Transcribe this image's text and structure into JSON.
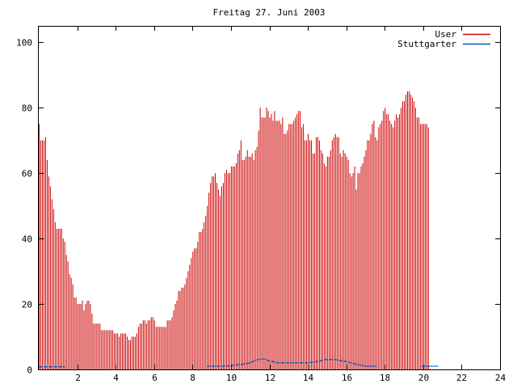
{
  "chart_data": {
    "type": "bar",
    "title": "Freitag 27. Juni 2003",
    "xlabel": "",
    "ylabel": "",
    "xlim": [
      0,
      24
    ],
    "ylim": [
      0,
      105
    ],
    "x_ticks": [
      2,
      4,
      6,
      8,
      10,
      12,
      14,
      16,
      18,
      20,
      22,
      24
    ],
    "y_ticks": [
      0,
      20,
      40,
      60,
      80,
      100
    ],
    "grid": false,
    "legend_position": "top-right",
    "step_minutes": 5,
    "series": [
      {
        "name": "User",
        "color": "#cc0000",
        "style": "impulses",
        "x_start": 0,
        "values": [
          75,
          70,
          70,
          70,
          71,
          64,
          59,
          56,
          52,
          49,
          45,
          43,
          43,
          43,
          43,
          40,
          39,
          35,
          33,
          29,
          28,
          26,
          22,
          22,
          20,
          20,
          20,
          21,
          18,
          20,
          21,
          21,
          20,
          17,
          14,
          14,
          14,
          14,
          14,
          12,
          12,
          12,
          12,
          12,
          12,
          12,
          12,
          11,
          11,
          11,
          10,
          11,
          11,
          11,
          11,
          10,
          9,
          9,
          10,
          10,
          10,
          11,
          13,
          14,
          14,
          15,
          15,
          14,
          15,
          15,
          16,
          16,
          15,
          13,
          13,
          13,
          13,
          13,
          13,
          13,
          15,
          15,
          15,
          16,
          18,
          20,
          21,
          24,
          24,
          25,
          25,
          26,
          28,
          30,
          32,
          34,
          36,
          37,
          37,
          39,
          42,
          42,
          43,
          45,
          47,
          50,
          54,
          57,
          59,
          59,
          60,
          57,
          55,
          53,
          56,
          57,
          60,
          61,
          60,
          60,
          62,
          62,
          62,
          63,
          66,
          67,
          70,
          64,
          64,
          65,
          67,
          65,
          65,
          66,
          64,
          67,
          68,
          73,
          80,
          77,
          77,
          77,
          80,
          79,
          77,
          78,
          76,
          79,
          76,
          76,
          76,
          75,
          77,
          72,
          72,
          73,
          75,
          75,
          75,
          76,
          77,
          78,
          79,
          79,
          74,
          75,
          70,
          70,
          72,
          70,
          70,
          66,
          66,
          71,
          71,
          70,
          67,
          66,
          63,
          62,
          65,
          65,
          67,
          70,
          71,
          72,
          71,
          71,
          66,
          65,
          67,
          66,
          65,
          64,
          60,
          59,
          60,
          62,
          55,
          60,
          60,
          62,
          63,
          65,
          67,
          70,
          70,
          72,
          75,
          76,
          71,
          70,
          74,
          75,
          76,
          79,
          80,
          78,
          78,
          76,
          75,
          74,
          76,
          78,
          77,
          78,
          80,
          82,
          82,
          84,
          85,
          85,
          84,
          83,
          82,
          80,
          77,
          77,
          75,
          75,
          75,
          75,
          75,
          74
        ]
      },
      {
        "name": "Stuttgarter",
        "color": "#0055bb",
        "style": "lines",
        "segments": [
          {
            "x": [
              0.0,
              1.35
            ],
            "values": [
              0.8,
              0.8
            ]
          },
          {
            "x": [
              8.75,
              9.5,
              10.0,
              10.5,
              11.0,
              11.35,
              11.7,
              12.0,
              12.5,
              13.0,
              14.0,
              14.5,
              14.9,
              15.4,
              16.0,
              16.5,
              17.0,
              17.6
            ],
            "values": [
              1.0,
              1.0,
              1.1,
              1.5,
              2.0,
              3.0,
              3.2,
              2.6,
              2.0,
              2.0,
              2.0,
              2.4,
              3.0,
              3.0,
              2.4,
              1.6,
              1.0,
              1.0
            ]
          },
          {
            "x": [
              19.9,
              20.8
            ],
            "values": [
              1.0,
              1.0
            ]
          }
        ]
      }
    ]
  }
}
